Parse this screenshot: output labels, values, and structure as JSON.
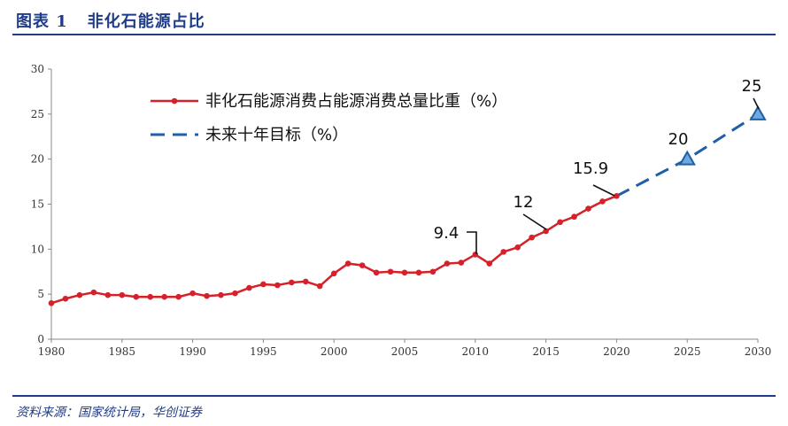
{
  "header": {
    "figure_number": "图表 1",
    "title": "非化石能源占比"
  },
  "footer": {
    "source": "资料来源：国家统计局，华创证券"
  },
  "chart_data": {
    "type": "line",
    "x_ticks": [
      1980,
      1985,
      1990,
      1995,
      2000,
      2005,
      2010,
      2015,
      2020,
      2025,
      2030
    ],
    "y_ticks": [
      0,
      5,
      10,
      15,
      20,
      25,
      30
    ],
    "xlim": [
      1980,
      2030
    ],
    "ylim": [
      0,
      30
    ],
    "grid": false,
    "legend_position": "top-left",
    "series": [
      {
        "name": "非化石能源消费占能源消费总量比重（%）",
        "color": "#d6202a",
        "style": "solid-with-markers",
        "x": [
          1980,
          1981,
          1982,
          1983,
          1984,
          1985,
          1986,
          1987,
          1988,
          1989,
          1990,
          1991,
          1992,
          1993,
          1994,
          1995,
          1996,
          1997,
          1998,
          1999,
          2000,
          2001,
          2002,
          2003,
          2004,
          2005,
          2006,
          2007,
          2008,
          2009,
          2010,
          2011,
          2012,
          2013,
          2014,
          2015,
          2016,
          2017,
          2018,
          2019,
          2020
        ],
        "values": [
          4.0,
          4.5,
          4.9,
          5.2,
          4.9,
          4.9,
          4.7,
          4.7,
          4.7,
          4.7,
          5.1,
          4.8,
          4.9,
          5.1,
          5.7,
          6.1,
          6.0,
          6.3,
          6.4,
          5.9,
          7.3,
          8.4,
          8.2,
          7.4,
          7.5,
          7.4,
          7.4,
          7.5,
          8.4,
          8.5,
          9.4,
          8.4,
          9.7,
          10.2,
          11.3,
          12.0,
          13.0,
          13.6,
          14.5,
          15.3,
          15.9
        ]
      },
      {
        "name": "未来十年目标（%）",
        "color": "#1f5fa8",
        "style": "dashed-with-triangles",
        "x": [
          2020,
          2025,
          2030
        ],
        "values": [
          15.9,
          20,
          25
        ]
      }
    ],
    "annotations": [
      {
        "text": "9.4",
        "x": 2010,
        "y": 9.4
      },
      {
        "text": "12",
        "x": 2015,
        "y": 12.0
      },
      {
        "text": "15.9",
        "x": 2020,
        "y": 15.9
      },
      {
        "text": "20",
        "x": 2025,
        "y": 20
      },
      {
        "text": "25",
        "x": 2030,
        "y": 25
      }
    ]
  }
}
